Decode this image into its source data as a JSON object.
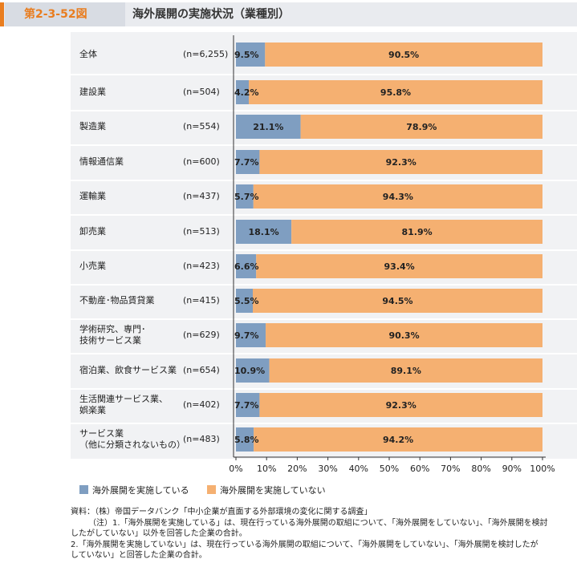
{
  "header": {
    "figure_number": "第2-3-52図",
    "title": "海外展開の実施状況（業種別）"
  },
  "colors": {
    "implemented": "#7f9ec1",
    "not_implemented": "#f5b071"
  },
  "chart_data": {
    "type": "bar",
    "stacked": true,
    "orientation": "horizontal",
    "percent_scale": true,
    "categories": [
      {
        "label": "全体",
        "n": "(n=6,255)"
      },
      {
        "label": "建設業",
        "n": "(n=504)"
      },
      {
        "label": "製造業",
        "n": "(n=554)"
      },
      {
        "label": "情報通信業",
        "n": "(n=600)"
      },
      {
        "label": "運輸業",
        "n": "(n=437)"
      },
      {
        "label": "卸売業",
        "n": "(n=513)"
      },
      {
        "label": "小売業",
        "n": "(n=423)"
      },
      {
        "label": "不動産･物品賃貸業",
        "n": "(n=415)"
      },
      {
        "label": "学術研究、専門･\n技術サービス業",
        "n": "(n=629)"
      },
      {
        "label": "宿泊業、飲食サービス業",
        "n": "(n=654)"
      },
      {
        "label": "生活関連サービス業、\n娯楽業",
        "n": "(n=402)"
      },
      {
        "label": "サービス業\n（他に分類されないもの）",
        "n": "(n=483)"
      }
    ],
    "series": [
      {
        "name": "海外展開を実施している",
        "values": [
          9.5,
          4.2,
          21.1,
          7.7,
          5.7,
          18.1,
          6.6,
          5.5,
          9.7,
          10.9,
          7.7,
          5.8
        ],
        "labels": [
          "9.5%",
          "4.2%",
          "21.1%",
          "7.7%",
          "5.7%",
          "18.1%",
          "6.6%",
          "5.5%",
          "9.7%",
          "10.9%",
          "7.7%",
          "5.8%"
        ]
      },
      {
        "name": "海外展開を実施していない",
        "values": [
          90.5,
          95.8,
          78.9,
          92.3,
          94.3,
          81.9,
          93.4,
          94.5,
          90.3,
          89.1,
          92.3,
          94.2
        ],
        "labels": [
          "90.5%",
          "95.8%",
          "78.9%",
          "92.3%",
          "94.3%",
          "81.9%",
          "93.4%",
          "94.5%",
          "90.3%",
          "89.1%",
          "92.3%",
          "94.2%"
        ]
      }
    ],
    "x_ticks": [
      "0%",
      "10%",
      "20%",
      "30%",
      "40%",
      "50%",
      "60%",
      "70%",
      "80%",
      "90%",
      "100%"
    ],
    "xlim": [
      0,
      100
    ]
  },
  "legend": [
    {
      "label": "海外展開を実施している"
    },
    {
      "label": "海外展開を実施していない"
    }
  ],
  "notes": [
    "資料：（株）帝国データバンク「中小企業が直面する外部環境の変化に関する調査」",
    "（注）1.「海外展開を実施している」は、現在行っている海外展開の取組について、「海外展開をしていない」、「海外展開を検討",
    "したがしていない」以外を回答した企業の合計。",
    "2.「海外展開を実施していない」は、現在行っている海外展開の取組について、「海外展開をしていない」、「海外展開を検討したが",
    "していない」と回答した企業の合計。"
  ]
}
